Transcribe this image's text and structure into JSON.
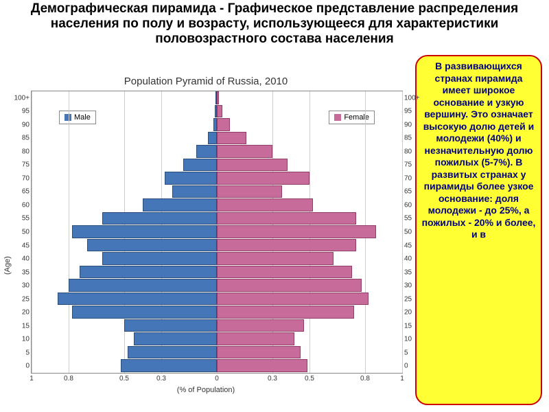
{
  "title": "Демографическая пирамида - Графическое представление распределения населения по полу и возрасту, использующееся для характеристики половозрастного состава населения",
  "sidebox_text": "В развивающихся странах пирамида имеет широкое основание и узкую вершину. Это означает высокую долю детей и молодежи (40%) и незначительную долю пожилых (5-7%). В развитых странах у пирамиды более узкое основание: доля молодежи - до 25%, а пожилых - 20% и более, и в",
  "sidebox_bg": "#ffff33",
  "sidebox_border": "#cc0000",
  "sidebox_text_color": "#000080",
  "chart": {
    "title": "Population Pyramid of Russia, 2010",
    "x_label": "(% of Population)",
    "y_label": "(Age)",
    "legend": {
      "male": "Male",
      "female": "Female"
    },
    "male_color": "#4577b8",
    "female_color": "#c76b9a",
    "grid_color": "#cccccc",
    "background": "#ffffff",
    "x_ticks": [
      1.0,
      0.8,
      0.5,
      0.3,
      0.0,
      0.3,
      0.5,
      0.8,
      1.0
    ],
    "x_max": 1.0,
    "age_labels": [
      "0",
      "5",
      "10",
      "15",
      "20",
      "25",
      "30",
      "35",
      "40",
      "45",
      "50",
      "55",
      "60",
      "65",
      "70",
      "75",
      "80",
      "85",
      "90",
      "95",
      "100+"
    ],
    "bars": [
      {
        "age": 0,
        "m": 0.52,
        "f": 0.49
      },
      {
        "age": 5,
        "m": 0.48,
        "f": 0.45
      },
      {
        "age": 10,
        "m": 0.45,
        "f": 0.42
      },
      {
        "age": 15,
        "m": 0.5,
        "f": 0.47
      },
      {
        "age": 20,
        "m": 0.78,
        "f": 0.74
      },
      {
        "age": 25,
        "m": 0.86,
        "f": 0.82
      },
      {
        "age": 30,
        "m": 0.8,
        "f": 0.78
      },
      {
        "age": 35,
        "m": 0.74,
        "f": 0.73
      },
      {
        "age": 40,
        "m": 0.62,
        "f": 0.63
      },
      {
        "age": 45,
        "m": 0.7,
        "f": 0.75
      },
      {
        "age": 50,
        "m": 0.78,
        "f": 0.86
      },
      {
        "age": 55,
        "m": 0.62,
        "f": 0.75
      },
      {
        "age": 60,
        "m": 0.4,
        "f": 0.52
      },
      {
        "age": 65,
        "m": 0.24,
        "f": 0.35
      },
      {
        "age": 70,
        "m": 0.28,
        "f": 0.5
      },
      {
        "age": 75,
        "m": 0.18,
        "f": 0.38
      },
      {
        "age": 80,
        "m": 0.11,
        "f": 0.3
      },
      {
        "age": 85,
        "m": 0.05,
        "f": 0.16
      },
      {
        "age": 90,
        "m": 0.02,
        "f": 0.07
      },
      {
        "age": 95,
        "m": 0.01,
        "f": 0.03
      },
      {
        "age": 100,
        "m": 0.005,
        "f": 0.012
      }
    ]
  }
}
